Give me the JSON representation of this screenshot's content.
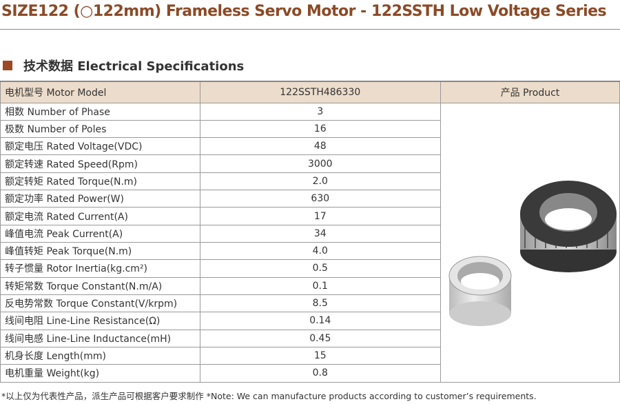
{
  "title": "SIZE122 (○122mm) Frameless Servo Motor - 122SSTH Low Voltage Series",
  "section_title": "技术数据 Electrical Specifications",
  "table": {
    "headers": [
      "电机型号 Motor Model",
      "122SSTH486330",
      "产品 Product"
    ],
    "rows": [
      [
        "相数 Number of Phase",
        "3"
      ],
      [
        "极数 Number of Poles",
        "16"
      ],
      [
        "额定电压 Rated Voltage(VDC)",
        "48"
      ],
      [
        "额定转速 Rated Speed(Rpm)",
        "3000"
      ],
      [
        "额定转矩 Rated Torque(N.m)",
        "2.0"
      ],
      [
        "额定功率 Rated Power(W)",
        "630"
      ],
      [
        "额定电流 Rated Current(A)",
        "17"
      ],
      [
        "峰值电流 Peak Current(A)",
        "34"
      ],
      [
        "峰值转矩 Peak Torque(N.m)",
        "4.0"
      ],
      [
        "转子惯量 Rotor Inertia(kg.cm²)",
        "0.5"
      ],
      [
        "转矩常数 Torque Constant(N.m/A)",
        "0.1"
      ],
      [
        "反电势常数 Torque Constant(V/krpm)",
        "8.5"
      ],
      [
        "线间电阻 Line-Line Resistance(Ω)",
        "0.14"
      ],
      [
        "线间电感 Line-Line Inductance(mH)",
        "0.45"
      ],
      [
        "机身长度 Length(mm)",
        "15"
      ],
      [
        "电机重量 Weight(kg)",
        "0.8"
      ]
    ]
  },
  "note": "*以上仅为代表性产品，派生产品可根据客户要求制作  *Note: We can manufacture products according to customer’s requirements.",
  "colors": {
    "accent": "#8b4a26",
    "header_bg": "#ecdccb"
  }
}
